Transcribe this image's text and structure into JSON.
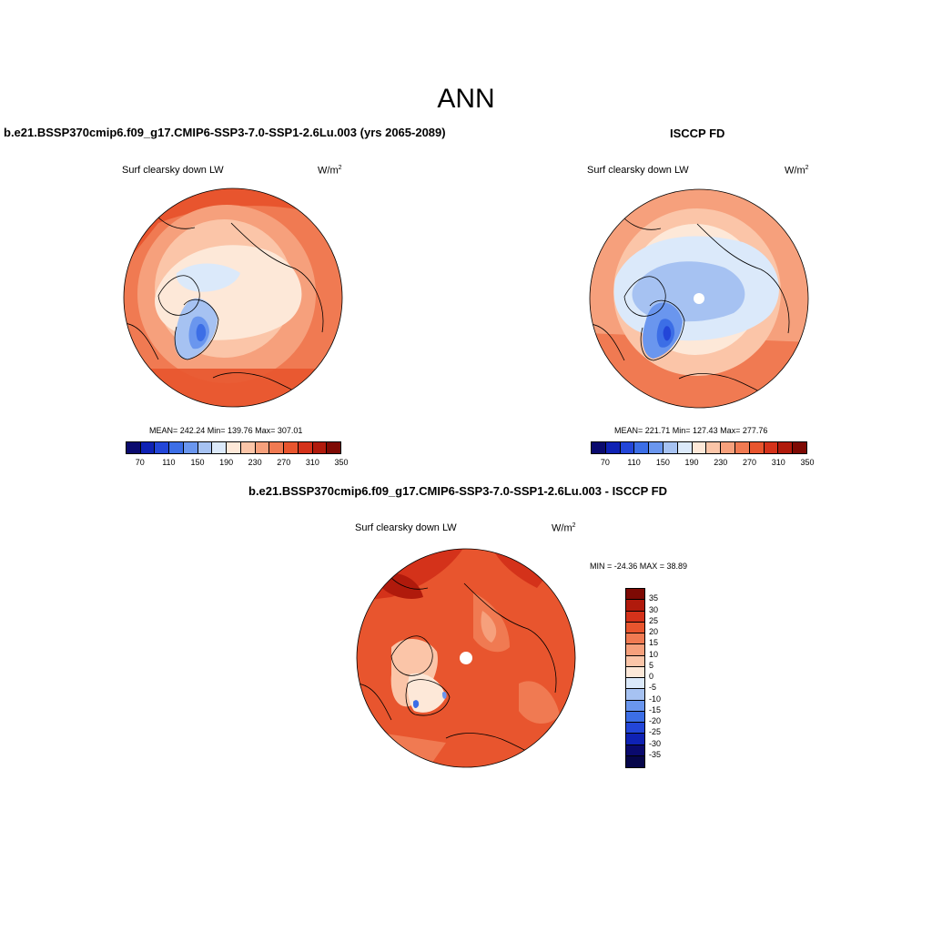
{
  "main_title": "ANN",
  "panels": [
    {
      "title": "b.e21.BSSP370cmip6.f09_g17.CMIP6-SSP3-7.0-SSP1-2.6Lu.003 (yrs 2065-2089)",
      "variable": "Surf clearsky down LW",
      "units_base": "W/m",
      "units_exp": "2",
      "stats": "MEAN= 242.24  Min= 139.76  Max= 307.01"
    },
    {
      "title": "ISCCP FD",
      "variable": "Surf clearsky down LW",
      "units_base": "W/m",
      "units_exp": "2",
      "stats": "MEAN= 221.71  Min= 127.43  Max= 277.76"
    },
    {
      "title": "b.e21.BSSP370cmip6.f09_g17.CMIP6-SSP3-7.0-SSP1-2.6Lu.003 - ISCCP FD",
      "variable": "Surf clearsky down LW",
      "units_base": "W/m",
      "units_exp": "2",
      "stats": "MIN = -24.36 MAX =  38.89"
    }
  ],
  "abs_colorbar": {
    "colors": [
      "#0a0a6e",
      "#0f22b4",
      "#2346d8",
      "#3c6ee6",
      "#6a96ee",
      "#a6c2f2",
      "#dbe9fa",
      "#fde8d8",
      "#fbc5a8",
      "#f6a07c",
      "#f07a52",
      "#e8552e",
      "#d4321a",
      "#b01a0c",
      "#7e0a04"
    ],
    "labels": [
      "70",
      "110",
      "150",
      "190",
      "230",
      "270",
      "310",
      "350"
    ]
  },
  "diff_colorbar": {
    "colors": [
      "#7e0a04",
      "#b01a0c",
      "#d4321a",
      "#e8552e",
      "#f07a52",
      "#f6a07c",
      "#fbc5a8",
      "#fde8d8",
      "#dbe9fa",
      "#a6c2f2",
      "#6a96ee",
      "#3c6ee6",
      "#2346d8",
      "#0f22b4",
      "#0a0a6e",
      "#06064a"
    ],
    "labels": [
      "35",
      "30",
      "25",
      "20",
      "15",
      "10",
      "5",
      "0",
      "-5",
      "-10",
      "-15",
      "-20",
      "-25",
      "-30",
      "-35"
    ]
  }
}
